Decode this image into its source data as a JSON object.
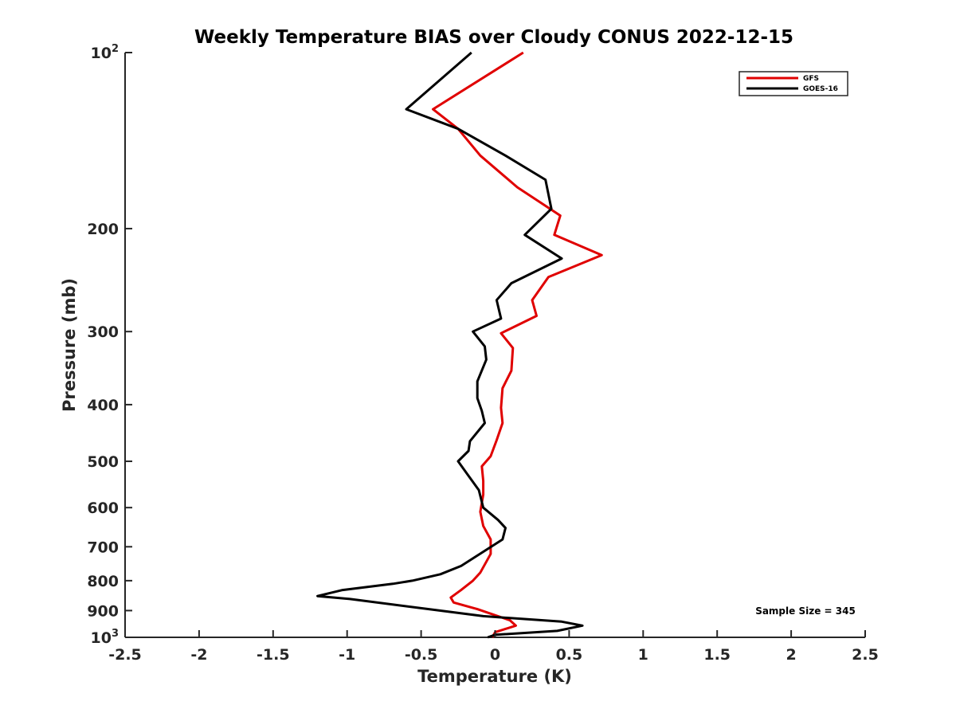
{
  "chart_data": {
    "type": "line",
    "title": "Weekly Temperature BIAS over Cloudy CONUS 2022-12-15",
    "xlabel": "Temperature (K)",
    "ylabel": "Pressure (mb)",
    "xlim": [
      -2.5,
      2.5
    ],
    "ylim": [
      1000,
      100
    ],
    "yscale": "log",
    "grid": false,
    "legend_position": "top-right",
    "x_ticks": [
      -2.5,
      -2,
      -1.5,
      -1,
      -0.5,
      0,
      0.5,
      1,
      1.5,
      2,
      2.5
    ],
    "x_tick_labels": [
      "-2.5",
      "-2",
      "-1.5",
      "-1",
      "-0.5",
      "0",
      "0.5",
      "1",
      "1.5",
      "2",
      "2.5"
    ],
    "y_ticks": [
      100,
      200,
      300,
      400,
      500,
      600,
      700,
      800,
      900,
      1000
    ],
    "y_tick_labels": [
      {
        "base": "10",
        "exp": "2"
      },
      {
        "base": "200"
      },
      {
        "base": "300"
      },
      {
        "base": "400"
      },
      {
        "base": "500"
      },
      {
        "base": "600"
      },
      {
        "base": "700"
      },
      {
        "base": "800"
      },
      {
        "base": "900"
      },
      {
        "base": "10",
        "exp": "3"
      }
    ],
    "annotation": "Sample Size = 345",
    "series": [
      {
        "name": "GFS",
        "color": "#e00000",
        "points": [
          [
            0.19,
            100
          ],
          [
            -0.42,
            125
          ],
          [
            -0.25,
            135
          ],
          [
            -0.1,
            150
          ],
          [
            0.15,
            170
          ],
          [
            0.44,
            190
          ],
          [
            0.4,
            205
          ],
          [
            0.72,
            222
          ],
          [
            0.36,
            242
          ],
          [
            0.25,
            265
          ],
          [
            0.28,
            282
          ],
          [
            0.04,
            302
          ],
          [
            0.12,
            320
          ],
          [
            0.11,
            350
          ],
          [
            0.05,
            375
          ],
          [
            0.04,
            405
          ],
          [
            0.05,
            430
          ],
          [
            0.01,
            460
          ],
          [
            -0.03,
            490
          ],
          [
            -0.09,
            510
          ],
          [
            -0.08,
            540
          ],
          [
            -0.08,
            570
          ],
          [
            -0.1,
            610
          ],
          [
            -0.08,
            645
          ],
          [
            -0.03,
            680
          ],
          [
            -0.03,
            720
          ],
          [
            -0.1,
            775
          ],
          [
            -0.15,
            800
          ],
          [
            -0.23,
            830
          ],
          [
            -0.3,
            855
          ],
          [
            -0.28,
            872
          ],
          [
            -0.12,
            895
          ],
          [
            0.1,
            935
          ],
          [
            0.14,
            955
          ],
          [
            0.0,
            980
          ],
          [
            -0.02,
            1000
          ]
        ]
      },
      {
        "name": "GOES-16",
        "color": "#000000",
        "points": [
          [
            -0.16,
            100
          ],
          [
            -0.6,
            125
          ],
          [
            -0.25,
            135
          ],
          [
            0.07,
            150
          ],
          [
            0.34,
            165
          ],
          [
            0.38,
            185
          ],
          [
            0.2,
            205
          ],
          [
            0.45,
            225
          ],
          [
            0.11,
            248
          ],
          [
            0.01,
            265
          ],
          [
            0.04,
            285
          ],
          [
            -0.15,
            300
          ],
          [
            -0.07,
            318
          ],
          [
            -0.06,
            335
          ],
          [
            -0.12,
            365
          ],
          [
            -0.12,
            390
          ],
          [
            -0.09,
            410
          ],
          [
            -0.07,
            430
          ],
          [
            -0.17,
            462
          ],
          [
            -0.18,
            480
          ],
          [
            -0.25,
            500
          ],
          [
            -0.19,
            525
          ],
          [
            -0.11,
            560
          ],
          [
            -0.08,
            600
          ],
          [
            0.02,
            630
          ],
          [
            0.07,
            650
          ],
          [
            0.05,
            680
          ],
          [
            -0.23,
            755
          ],
          [
            -0.37,
            780
          ],
          [
            -0.56,
            800
          ],
          [
            -0.69,
            810
          ],
          [
            -1.03,
            830
          ],
          [
            -1.2,
            850
          ],
          [
            -0.98,
            860
          ],
          [
            -0.08,
            920
          ],
          [
            0.45,
            940
          ],
          [
            0.59,
            955
          ],
          [
            0.42,
            975
          ],
          [
            0.0,
            990
          ],
          [
            -0.05,
            1000
          ]
        ]
      }
    ]
  }
}
